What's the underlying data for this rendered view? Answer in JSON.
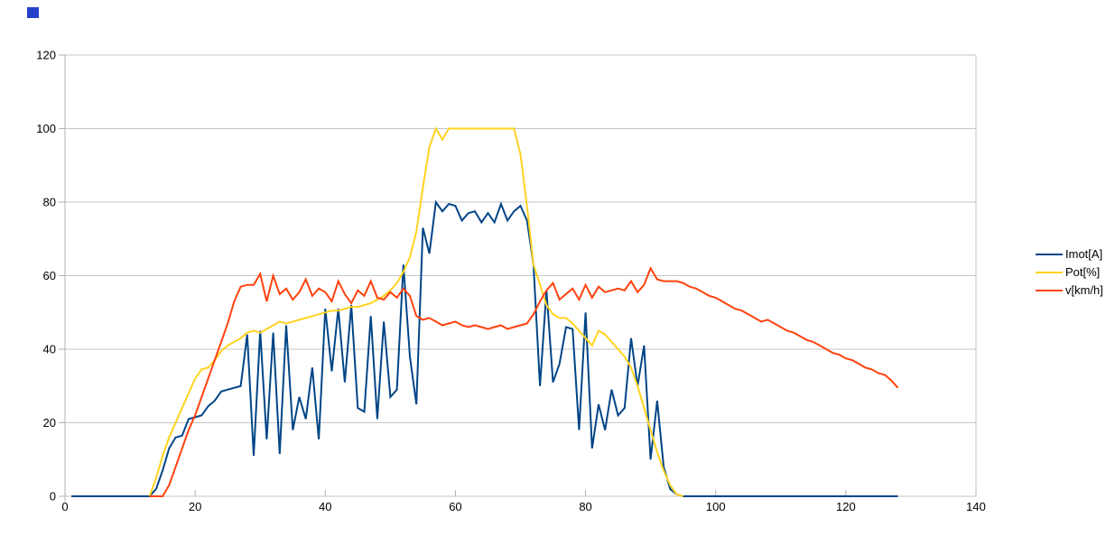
{
  "page": {
    "background": "#ffffff"
  },
  "decorations": {
    "corner_square": {
      "color": "#2442c8"
    }
  },
  "legend": {
    "position": "right"
  },
  "chart_data": {
    "type": "line",
    "title": "",
    "xlabel": "",
    "ylabel": "",
    "xlim": [
      0,
      140
    ],
    "ylim": [
      0,
      120
    ],
    "x_ticks": [
      "0",
      "20",
      "40",
      "60",
      "80",
      "100",
      "120",
      "140"
    ],
    "y_ticks": [
      "0",
      "20",
      "40",
      "60",
      "80",
      "100",
      "120"
    ],
    "grid": "horizontal",
    "grid_color": "#c6c6c6",
    "axis_color": "#b0b0b0",
    "label_color": "#000000",
    "legend_position": "right",
    "series": [
      {
        "name": "Imot[A]",
        "color": "#004586",
        "x_start": 1,
        "x_step": 1,
        "values": [
          0,
          0,
          0,
          0,
          0,
          0,
          0,
          0,
          0,
          0,
          0,
          0,
          0,
          2,
          7,
          13,
          16,
          16.5,
          21,
          21.5,
          22,
          24.5,
          26,
          28.5,
          29,
          29.5,
          30,
          44,
          11,
          45,
          15.5,
          44.5,
          11.5,
          46.5,
          18,
          27,
          21,
          35,
          15.5,
          51,
          34,
          51,
          31,
          52,
          24,
          23,
          49,
          21,
          47.5,
          27,
          29,
          63,
          38,
          25,
          73,
          66,
          80,
          77.5,
          79.5,
          79,
          75,
          77,
          77.5,
          74.5,
          77,
          74.5,
          79.5,
          75,
          77.5,
          79,
          75,
          63,
          30,
          56,
          31,
          36,
          46,
          45.5,
          18,
          50,
          13,
          25,
          18,
          29,
          22,
          24,
          43,
          30,
          41,
          10,
          26,
          8,
          2,
          0.5,
          0,
          0,
          0,
          0,
          0,
          0,
          0,
          0,
          0,
          0,
          0,
          0,
          0,
          0,
          0,
          0,
          0,
          0,
          0,
          0,
          0,
          0,
          0,
          0,
          0,
          0,
          0,
          0,
          0,
          0,
          0,
          0,
          0,
          0
        ]
      },
      {
        "name": "Pot[%]",
        "color": "#ffd320",
        "x_start": 13,
        "x_step": 1,
        "values": [
          0,
          5,
          11,
          16,
          20,
          24,
          28,
          32,
          34.5,
          35,
          37,
          39.5,
          41,
          42,
          43,
          44.5,
          45,
          44.5,
          45.5,
          46.5,
          47.5,
          47,
          47.5,
          48,
          48.5,
          49,
          49.5,
          50,
          50.5,
          50.5,
          51,
          51.5,
          51.5,
          52,
          52.5,
          53.5,
          54.5,
          56,
          58,
          61,
          65,
          72,
          84,
          95,
          100,
          97,
          100,
          100,
          100,
          100,
          100,
          100,
          100,
          100,
          100,
          100,
          100,
          93,
          79,
          63,
          57.5,
          52,
          49.5,
          48.5,
          48.5,
          47,
          45,
          43,
          41,
          45,
          44,
          42,
          40,
          38,
          35,
          30,
          24,
          18,
          12,
          7,
          3,
          0.5,
          0
        ]
      },
      {
        "name": "v[km/h]",
        "color": "#ff420e",
        "x_start": 13,
        "x_step": 1,
        "values": [
          0,
          0,
          0,
          3,
          8,
          13,
          18,
          22,
          27,
          32,
          37,
          42,
          47,
          53,
          57,
          57.5,
          57.5,
          60.5,
          53,
          60,
          55,
          56.5,
          53.5,
          55.5,
          59,
          54.5,
          56.5,
          55.5,
          53,
          58.5,
          55,
          52.5,
          56,
          54.5,
          58.5,
          54,
          53.5,
          55.5,
          54,
          56.5,
          54.5,
          49,
          48,
          48.5,
          47.5,
          46.5,
          47,
          47.5,
          46.5,
          46,
          46.5,
          46,
          45.5,
          46,
          46.5,
          45.5,
          46,
          46.5,
          47,
          49.5,
          53,
          56,
          58,
          53.5,
          55,
          56.5,
          53.5,
          57.5,
          54,
          57,
          55.5,
          56,
          56.5,
          56,
          58.5,
          55.5,
          57.5,
          62,
          59,
          58.5,
          58.5,
          58.5,
          58,
          57,
          56.5,
          55.5,
          54.5,
          54,
          53,
          52,
          51,
          50.5,
          49.5,
          48.5,
          47.5,
          48,
          47,
          46,
          45,
          44.5,
          43.5,
          42.5,
          42,
          41,
          40,
          39,
          38.5,
          37.5,
          37,
          36,
          35,
          34.5,
          33.5,
          33,
          31.5,
          29.5
        ]
      }
    ]
  }
}
